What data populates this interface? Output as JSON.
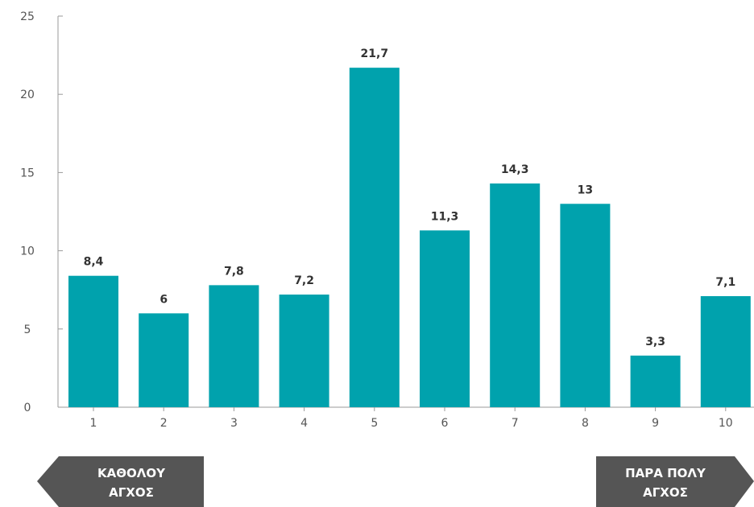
{
  "chart_data": {
    "type": "bar",
    "categories": [
      "1",
      "2",
      "3",
      "4",
      "5",
      "6",
      "7",
      "8",
      "9",
      "10"
    ],
    "values": [
      8.4,
      6,
      7.8,
      7.2,
      21.7,
      11.3,
      14.3,
      13,
      3.3,
      7.1
    ],
    "value_labels": [
      "8,4",
      "6",
      "7,8",
      "7,2",
      "21,7",
      "11,3",
      "14,3",
      "13",
      "3,3",
      "7,1"
    ],
    "yticks": [
      0,
      5,
      10,
      15,
      20,
      25
    ],
    "ylim": [
      0,
      25
    ],
    "grid": false,
    "bar_color": "#00a2ad",
    "title": "",
    "xlabel": "",
    "ylabel": ""
  },
  "scale_labels": {
    "left_line1": "ΚΑΘΟΛΟΥ",
    "left_line2": "ΑΓΧΟΣ",
    "right_line1": "ΠΑΡΑ ΠΟΛΥ",
    "right_line2": "ΑΓΧΟΣ",
    "arrow_color": "#555555"
  }
}
